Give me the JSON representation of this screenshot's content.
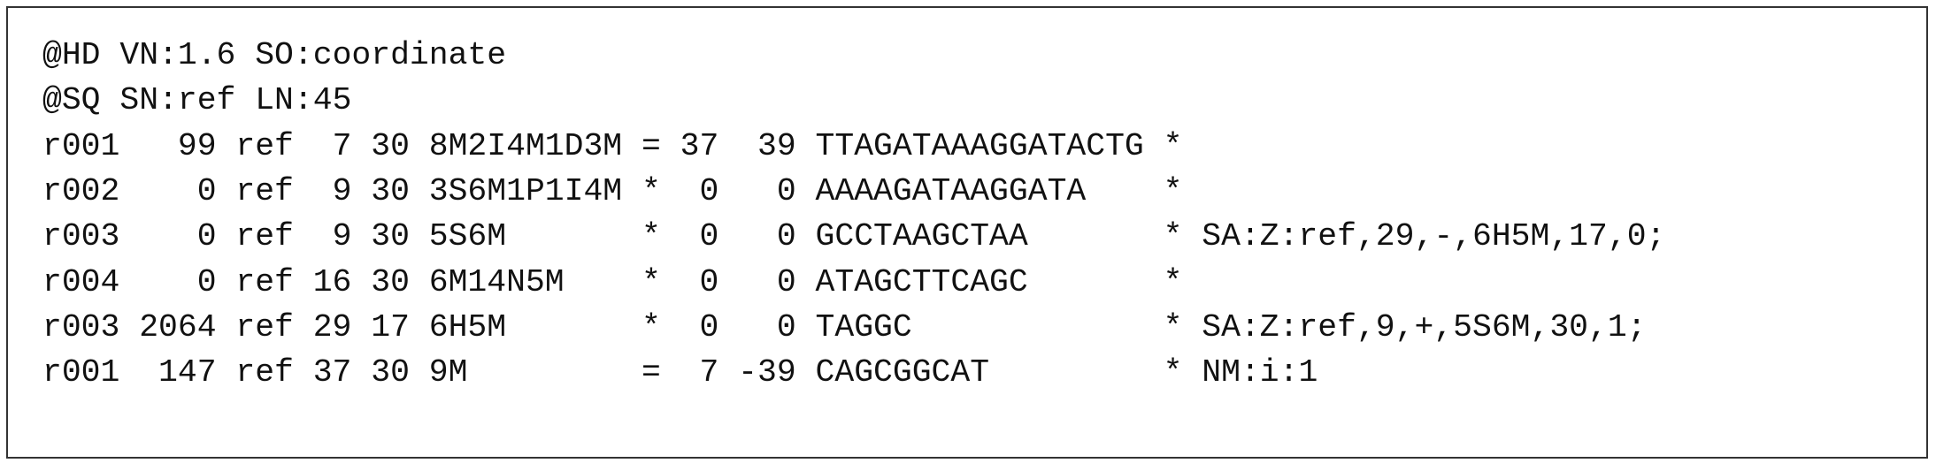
{
  "header_lines": [
    "@HD VN:1.6 SO:coordinate",
    "@SQ SN:ref LN:45"
  ],
  "alignments": [
    [
      "r001",
      99,
      "ref",
      7,
      30,
      "8M2I4M1D3M",
      "=",
      37,
      39,
      "TTAGATAAAGGATACTG",
      "*"
    ],
    [
      "r002",
      0,
      "ref",
      9,
      30,
      "3S6M1P1I4M",
      "*",
      0,
      0,
      "AAAAGATAAGGATA",
      "*"
    ],
    [
      "r003",
      0,
      "ref",
      9,
      30,
      "5S6M",
      "*",
      0,
      0,
      "GCCTAAGCTAA",
      "*",
      "SA:Z:ref,29,-,6H5M,17,0;"
    ],
    [
      "r004",
      0,
      "ref",
      16,
      30,
      "6M14N5M",
      "*",
      0,
      0,
      "ATAGCTTCAGC",
      "*"
    ],
    [
      "r003",
      2064,
      "ref",
      29,
      17,
      "6H5M",
      "*",
      0,
      0,
      "TAGGC",
      "*",
      "SA:Z:ref,9,+,5S6M,30,1;"
    ],
    [
      "r001",
      147,
      "ref",
      37,
      30,
      "9M",
      "=",
      7,
      -39,
      "CAGCGGCAT",
      "*",
      "NM:i:1"
    ]
  ]
}
